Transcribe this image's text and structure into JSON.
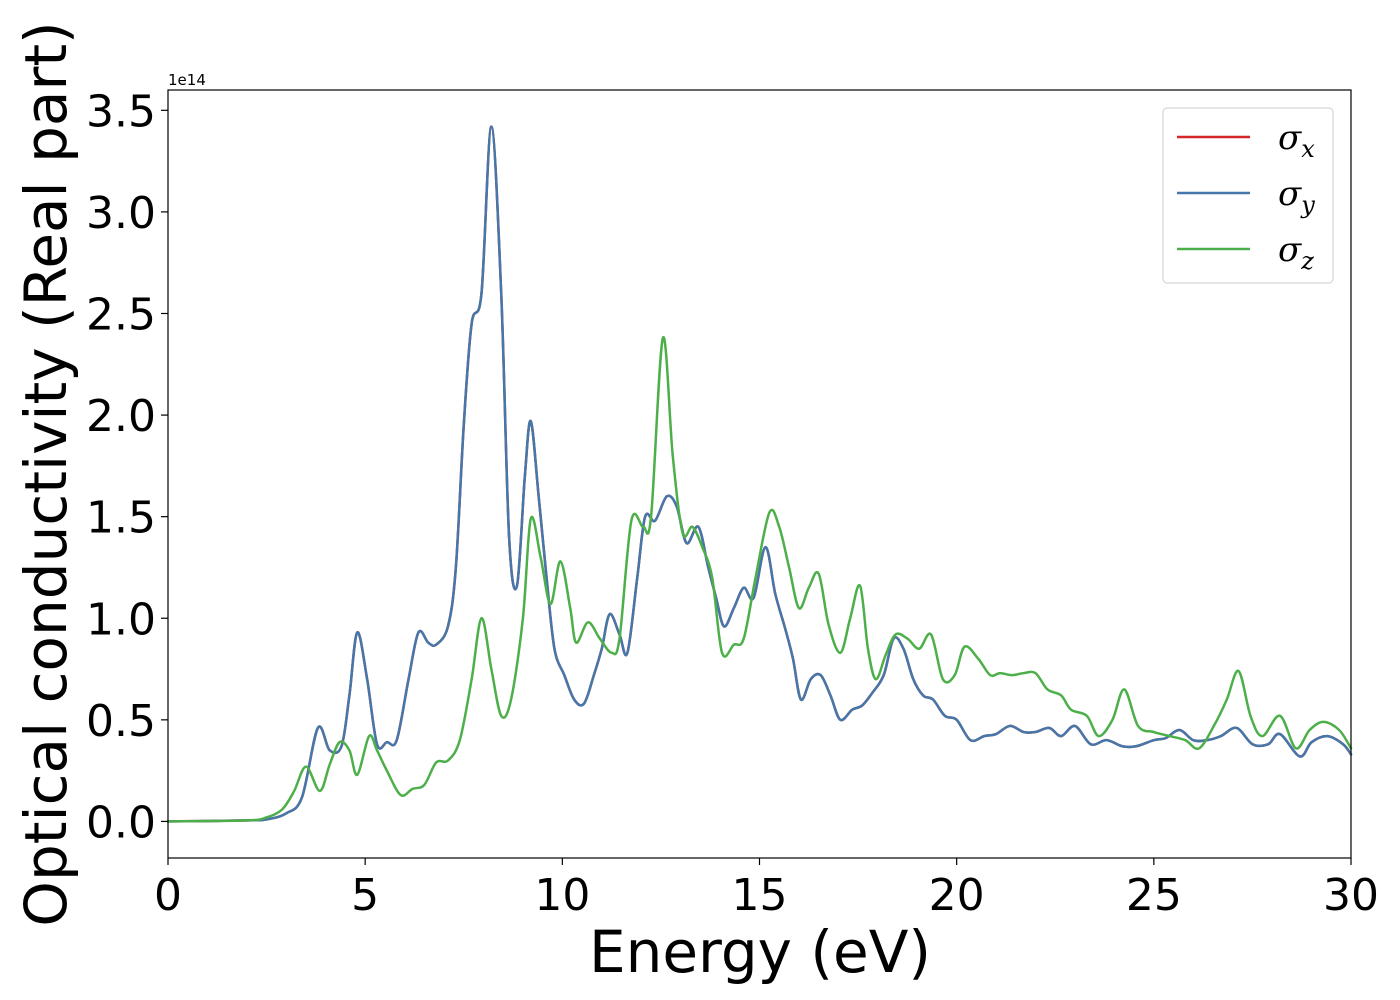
{
  "chart_data": {
    "type": "line",
    "xlabel": "Energy (eV)",
    "ylabel": "Optical conductivity (Real part)",
    "y_offset_text": "1e14",
    "xlim": [
      0,
      30
    ],
    "ylim": [
      -0.18,
      3.6
    ],
    "x_ticks": [
      0,
      5,
      10,
      15,
      20,
      25,
      30
    ],
    "x_tick_labels": [
      "0",
      "5",
      "10",
      "15",
      "20",
      "25",
      "30"
    ],
    "y_ticks": [
      0.0,
      0.5,
      1.0,
      1.5,
      2.0,
      2.5,
      3.0,
      3.5
    ],
    "y_tick_labels": [
      "0.0",
      "0.5",
      "1.0",
      "1.5",
      "2.0",
      "2.5",
      "3.0",
      "3.5"
    ],
    "grid": false,
    "legend_position": "top-right",
    "series": [
      {
        "name": "σx",
        "symbol": "σ",
        "subscript": "x",
        "color": "#d62728",
        "points": [
          [
            0,
            0
          ],
          [
            2,
            0.005
          ],
          [
            2.5,
            0.01
          ],
          [
            3,
            0.04
          ],
          [
            3.4,
            0.12
          ],
          [
            3.8,
            0.46
          ],
          [
            4.1,
            0.35
          ],
          [
            4.4,
            0.37
          ],
          [
            4.6,
            0.62
          ],
          [
            4.8,
            0.93
          ],
          [
            5.05,
            0.7
          ],
          [
            5.3,
            0.38
          ],
          [
            5.55,
            0.39
          ],
          [
            5.8,
            0.4
          ],
          [
            6.1,
            0.7
          ],
          [
            6.35,
            0.93
          ],
          [
            6.6,
            0.88
          ],
          [
            6.8,
            0.87
          ],
          [
            7.1,
            0.96
          ],
          [
            7.3,
            1.25
          ],
          [
            7.5,
            1.95
          ],
          [
            7.7,
            2.45
          ],
          [
            7.95,
            2.6
          ],
          [
            8.2,
            3.42
          ],
          [
            8.45,
            2.6
          ],
          [
            8.65,
            1.4
          ],
          [
            8.85,
            1.16
          ],
          [
            9.05,
            1.7
          ],
          [
            9.2,
            1.97
          ],
          [
            9.4,
            1.6
          ],
          [
            9.6,
            1.2
          ],
          [
            9.8,
            0.85
          ],
          [
            10.05,
            0.72
          ],
          [
            10.3,
            0.6
          ],
          [
            10.55,
            0.58
          ],
          [
            10.8,
            0.72
          ],
          [
            11.0,
            0.85
          ],
          [
            11.2,
            1.02
          ],
          [
            11.45,
            0.92
          ],
          [
            11.65,
            0.83
          ],
          [
            11.9,
            1.2
          ],
          [
            12.1,
            1.5
          ],
          [
            12.35,
            1.48
          ],
          [
            12.65,
            1.6
          ],
          [
            12.9,
            1.55
          ],
          [
            13.15,
            1.37
          ],
          [
            13.45,
            1.45
          ],
          [
            13.7,
            1.25
          ],
          [
            13.9,
            1.1
          ],
          [
            14.1,
            0.96
          ],
          [
            14.35,
            1.05
          ],
          [
            14.6,
            1.15
          ],
          [
            14.85,
            1.1
          ],
          [
            15.15,
            1.35
          ],
          [
            15.4,
            1.12
          ],
          [
            15.65,
            0.95
          ],
          [
            15.85,
            0.8
          ],
          [
            16.05,
            0.6
          ],
          [
            16.3,
            0.7
          ],
          [
            16.55,
            0.72
          ],
          [
            16.8,
            0.62
          ],
          [
            17.05,
            0.5
          ],
          [
            17.35,
            0.55
          ],
          [
            17.6,
            0.57
          ],
          [
            17.85,
            0.63
          ],
          [
            18.15,
            0.72
          ],
          [
            18.4,
            0.9
          ],
          [
            18.65,
            0.85
          ],
          [
            18.9,
            0.7
          ],
          [
            19.15,
            0.62
          ],
          [
            19.4,
            0.6
          ],
          [
            19.7,
            0.52
          ],
          [
            20.0,
            0.5
          ],
          [
            20.35,
            0.4
          ],
          [
            20.7,
            0.42
          ],
          [
            21.0,
            0.43
          ],
          [
            21.35,
            0.47
          ],
          [
            21.7,
            0.44
          ],
          [
            22.0,
            0.44
          ],
          [
            22.35,
            0.46
          ],
          [
            22.65,
            0.42
          ],
          [
            23.0,
            0.47
          ],
          [
            23.4,
            0.38
          ],
          [
            23.8,
            0.4
          ],
          [
            24.2,
            0.37
          ],
          [
            24.55,
            0.37
          ],
          [
            25.0,
            0.4
          ],
          [
            25.3,
            0.41
          ],
          [
            25.65,
            0.45
          ],
          [
            26.0,
            0.4
          ],
          [
            26.35,
            0.4
          ],
          [
            26.7,
            0.42
          ],
          [
            27.1,
            0.46
          ],
          [
            27.5,
            0.38
          ],
          [
            27.9,
            0.38
          ],
          [
            28.2,
            0.43
          ],
          [
            28.7,
            0.32
          ],
          [
            29.0,
            0.39
          ],
          [
            29.4,
            0.42
          ],
          [
            29.8,
            0.38
          ],
          [
            30,
            0.33
          ]
        ]
      },
      {
        "name": "σy",
        "symbol": "σ",
        "subscript": "y",
        "color": "#4477aa",
        "points": [
          [
            0,
            0
          ],
          [
            2,
            0.005
          ],
          [
            2.5,
            0.01
          ],
          [
            3,
            0.04
          ],
          [
            3.4,
            0.12
          ],
          [
            3.8,
            0.46
          ],
          [
            4.1,
            0.35
          ],
          [
            4.4,
            0.37
          ],
          [
            4.6,
            0.62
          ],
          [
            4.8,
            0.93
          ],
          [
            5.05,
            0.7
          ],
          [
            5.3,
            0.38
          ],
          [
            5.55,
            0.39
          ],
          [
            5.8,
            0.4
          ],
          [
            6.1,
            0.7
          ],
          [
            6.35,
            0.93
          ],
          [
            6.6,
            0.88
          ],
          [
            6.8,
            0.87
          ],
          [
            7.1,
            0.96
          ],
          [
            7.3,
            1.25
          ],
          [
            7.5,
            1.95
          ],
          [
            7.7,
            2.45
          ],
          [
            7.95,
            2.6
          ],
          [
            8.2,
            3.42
          ],
          [
            8.45,
            2.6
          ],
          [
            8.65,
            1.4
          ],
          [
            8.85,
            1.16
          ],
          [
            9.05,
            1.7
          ],
          [
            9.2,
            1.97
          ],
          [
            9.4,
            1.6
          ],
          [
            9.6,
            1.2
          ],
          [
            9.8,
            0.85
          ],
          [
            10.05,
            0.72
          ],
          [
            10.3,
            0.6
          ],
          [
            10.55,
            0.58
          ],
          [
            10.8,
            0.72
          ],
          [
            11.0,
            0.85
          ],
          [
            11.2,
            1.02
          ],
          [
            11.45,
            0.92
          ],
          [
            11.65,
            0.83
          ],
          [
            11.9,
            1.2
          ],
          [
            12.1,
            1.5
          ],
          [
            12.35,
            1.48
          ],
          [
            12.65,
            1.6
          ],
          [
            12.9,
            1.55
          ],
          [
            13.15,
            1.37
          ],
          [
            13.45,
            1.45
          ],
          [
            13.7,
            1.25
          ],
          [
            13.9,
            1.1
          ],
          [
            14.1,
            0.96
          ],
          [
            14.35,
            1.05
          ],
          [
            14.6,
            1.15
          ],
          [
            14.85,
            1.1
          ],
          [
            15.15,
            1.35
          ],
          [
            15.4,
            1.12
          ],
          [
            15.65,
            0.95
          ],
          [
            15.85,
            0.8
          ],
          [
            16.05,
            0.6
          ],
          [
            16.3,
            0.7
          ],
          [
            16.55,
            0.72
          ],
          [
            16.8,
            0.62
          ],
          [
            17.05,
            0.5
          ],
          [
            17.35,
            0.55
          ],
          [
            17.6,
            0.57
          ],
          [
            17.85,
            0.63
          ],
          [
            18.15,
            0.72
          ],
          [
            18.4,
            0.9
          ],
          [
            18.65,
            0.85
          ],
          [
            18.9,
            0.7
          ],
          [
            19.15,
            0.62
          ],
          [
            19.4,
            0.6
          ],
          [
            19.7,
            0.52
          ],
          [
            20.0,
            0.5
          ],
          [
            20.35,
            0.4
          ],
          [
            20.7,
            0.42
          ],
          [
            21.0,
            0.43
          ],
          [
            21.35,
            0.47
          ],
          [
            21.7,
            0.44
          ],
          [
            22.0,
            0.44
          ],
          [
            22.35,
            0.46
          ],
          [
            22.65,
            0.42
          ],
          [
            23.0,
            0.47
          ],
          [
            23.4,
            0.38
          ],
          [
            23.8,
            0.4
          ],
          [
            24.2,
            0.37
          ],
          [
            24.55,
            0.37
          ],
          [
            25.0,
            0.4
          ],
          [
            25.3,
            0.41
          ],
          [
            25.65,
            0.45
          ],
          [
            26.0,
            0.4
          ],
          [
            26.35,
            0.4
          ],
          [
            26.7,
            0.42
          ],
          [
            27.1,
            0.46
          ],
          [
            27.5,
            0.38
          ],
          [
            27.9,
            0.38
          ],
          [
            28.2,
            0.43
          ],
          [
            28.7,
            0.32
          ],
          [
            29.0,
            0.39
          ],
          [
            29.4,
            0.42
          ],
          [
            29.8,
            0.38
          ],
          [
            30,
            0.33
          ]
        ]
      },
      {
        "name": "σz",
        "symbol": "σ",
        "subscript": "z",
        "color": "#4daf4a",
        "points": [
          [
            0,
            0
          ],
          [
            2,
            0.005
          ],
          [
            2.5,
            0.02
          ],
          [
            2.9,
            0.06
          ],
          [
            3.2,
            0.15
          ],
          [
            3.5,
            0.27
          ],
          [
            3.85,
            0.15
          ],
          [
            4.1,
            0.28
          ],
          [
            4.35,
            0.39
          ],
          [
            4.6,
            0.35
          ],
          [
            4.8,
            0.23
          ],
          [
            5.1,
            0.42
          ],
          [
            5.3,
            0.35
          ],
          [
            5.55,
            0.25
          ],
          [
            5.9,
            0.13
          ],
          [
            6.2,
            0.16
          ],
          [
            6.5,
            0.18
          ],
          [
            6.8,
            0.29
          ],
          [
            7.1,
            0.3
          ],
          [
            7.4,
            0.4
          ],
          [
            7.7,
            0.7
          ],
          [
            7.95,
            1.0
          ],
          [
            8.2,
            0.75
          ],
          [
            8.45,
            0.52
          ],
          [
            8.7,
            0.6
          ],
          [
            9.0,
            1.0
          ],
          [
            9.2,
            1.49
          ],
          [
            9.45,
            1.3
          ],
          [
            9.7,
            1.07
          ],
          [
            9.95,
            1.28
          ],
          [
            10.2,
            1.05
          ],
          [
            10.35,
            0.88
          ],
          [
            10.65,
            0.98
          ],
          [
            10.95,
            0.9
          ],
          [
            11.25,
            0.83
          ],
          [
            11.45,
            0.9
          ],
          [
            11.75,
            1.48
          ],
          [
            12.05,
            1.45
          ],
          [
            12.25,
            1.5
          ],
          [
            12.55,
            2.38
          ],
          [
            12.8,
            1.8
          ],
          [
            13.05,
            1.42
          ],
          [
            13.3,
            1.45
          ],
          [
            13.55,
            1.35
          ],
          [
            13.8,
            1.2
          ],
          [
            14.05,
            0.83
          ],
          [
            14.35,
            0.87
          ],
          [
            14.6,
            0.9
          ],
          [
            14.9,
            1.2
          ],
          [
            15.25,
            1.52
          ],
          [
            15.5,
            1.45
          ],
          [
            15.75,
            1.25
          ],
          [
            16.0,
            1.05
          ],
          [
            16.25,
            1.15
          ],
          [
            16.5,
            1.22
          ],
          [
            16.75,
            0.97
          ],
          [
            17.05,
            0.83
          ],
          [
            17.3,
            1.0
          ],
          [
            17.55,
            1.16
          ],
          [
            17.75,
            0.85
          ],
          [
            17.95,
            0.7
          ],
          [
            18.2,
            0.82
          ],
          [
            18.45,
            0.92
          ],
          [
            18.75,
            0.9
          ],
          [
            19.05,
            0.85
          ],
          [
            19.35,
            0.92
          ],
          [
            19.65,
            0.7
          ],
          [
            19.95,
            0.72
          ],
          [
            20.2,
            0.86
          ],
          [
            20.55,
            0.8
          ],
          [
            20.85,
            0.72
          ],
          [
            21.1,
            0.73
          ],
          [
            21.4,
            0.72
          ],
          [
            21.7,
            0.73
          ],
          [
            22.0,
            0.73
          ],
          [
            22.3,
            0.65
          ],
          [
            22.65,
            0.62
          ],
          [
            22.9,
            0.55
          ],
          [
            23.3,
            0.52
          ],
          [
            23.6,
            0.42
          ],
          [
            23.95,
            0.5
          ],
          [
            24.25,
            0.65
          ],
          [
            24.6,
            0.47
          ],
          [
            25.0,
            0.44
          ],
          [
            25.4,
            0.42
          ],
          [
            25.8,
            0.4
          ],
          [
            26.15,
            0.36
          ],
          [
            26.55,
            0.48
          ],
          [
            26.85,
            0.6
          ],
          [
            27.15,
            0.74
          ],
          [
            27.45,
            0.52
          ],
          [
            27.75,
            0.42
          ],
          [
            28.2,
            0.52
          ],
          [
            28.6,
            0.36
          ],
          [
            28.95,
            0.45
          ],
          [
            29.3,
            0.49
          ],
          [
            29.7,
            0.45
          ],
          [
            30,
            0.36
          ]
        ]
      }
    ]
  }
}
